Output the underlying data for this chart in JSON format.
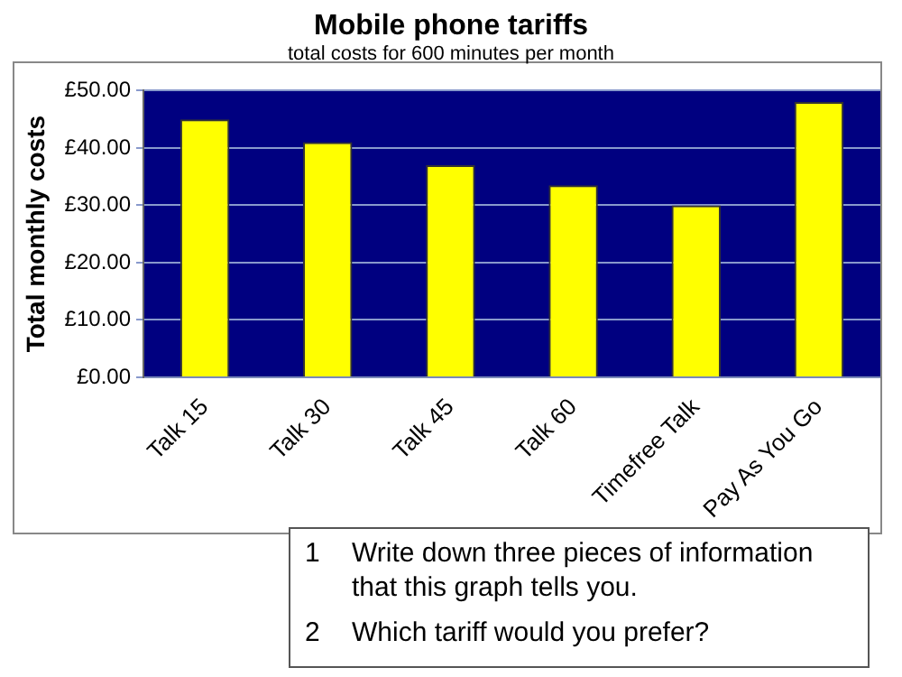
{
  "chart_data": {
    "type": "bar",
    "title": "Mobile phone tariffs",
    "subtitle": "total costs for 600 minutes per month",
    "ylabel": "Total monthly costs",
    "categories": [
      "Talk 15",
      "Talk 30",
      "Talk 45",
      "Talk 60",
      "Timefree Talk",
      "Pay As You Go"
    ],
    "values": [
      45,
      41,
      37,
      33.5,
      30,
      48
    ],
    "color": "#ffff00",
    "ylim": [
      0,
      50
    ],
    "yticks": [
      {
        "value": 0,
        "label": "£0.00"
      },
      {
        "value": 10,
        "label": "£10.00"
      },
      {
        "value": 20,
        "label": "£20.00"
      },
      {
        "value": 30,
        "label": "£30.00"
      },
      {
        "value": 40,
        "label": "£40.00"
      },
      {
        "value": 50,
        "label": "£50.00"
      }
    ],
    "grid": "y",
    "legend": false,
    "annotations": [
      "1 Write down three pieces of information that this graph tells you.",
      "2 Which tariff would you prefer?"
    ]
  }
}
